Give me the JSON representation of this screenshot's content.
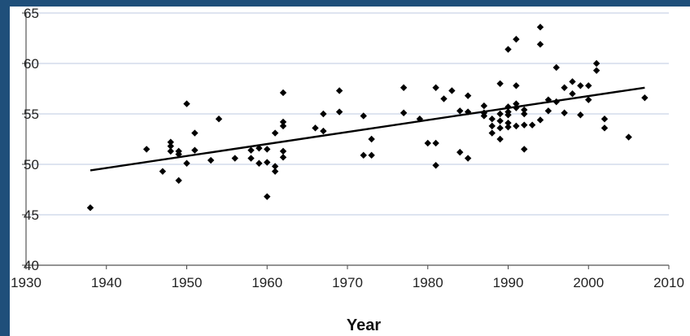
{
  "chart_data": {
    "type": "scatter",
    "title": "",
    "xlabel": "Year",
    "ylabel": "",
    "xlim": [
      1930,
      2010
    ],
    "ylim": [
      40,
      65
    ],
    "xticks": [
      "1930",
      "1940",
      "1950",
      "1960",
      "1970",
      "1980",
      "1990",
      "2000",
      "2010"
    ],
    "yticks": [
      "40",
      "45",
      "50",
      "55",
      "60",
      "65"
    ],
    "grid": "horizontal",
    "colors": {
      "plot_area": "#ffffff",
      "gridline": "#c9d3e8",
      "marker": "#000000",
      "trend": "#000000",
      "frame": "#1f4f7a"
    },
    "series": [
      {
        "points": [
          [
            1938,
            45.7
          ],
          [
            1945,
            51.5
          ],
          [
            1947,
            49.3
          ],
          [
            1948,
            52.2
          ],
          [
            1948,
            51.8
          ],
          [
            1948,
            51.3
          ],
          [
            1949,
            51.0
          ],
          [
            1949,
            51.3
          ],
          [
            1949,
            48.4
          ],
          [
            1950,
            56.0
          ],
          [
            1950,
            50.1
          ],
          [
            1951,
            53.1
          ],
          [
            1951,
            51.4
          ],
          [
            1953,
            50.4
          ],
          [
            1954,
            54.5
          ],
          [
            1956,
            50.6
          ],
          [
            1958,
            51.4
          ],
          [
            1958,
            50.6
          ],
          [
            1959,
            51.6
          ],
          [
            1959,
            50.1
          ],
          [
            1960,
            51.5
          ],
          [
            1960,
            50.2
          ],
          [
            1960,
            46.8
          ],
          [
            1961,
            49.8
          ],
          [
            1961,
            49.3
          ],
          [
            1961,
            53.1
          ],
          [
            1962,
            57.1
          ],
          [
            1962,
            54.2
          ],
          [
            1962,
            53.8
          ],
          [
            1962,
            51.3
          ],
          [
            1962,
            50.7
          ],
          [
            1966,
            53.6
          ],
          [
            1967,
            55.0
          ],
          [
            1967,
            53.3
          ],
          [
            1969,
            57.3
          ],
          [
            1969,
            55.2
          ],
          [
            1972,
            54.8
          ],
          [
            1972,
            50.9
          ],
          [
            1973,
            52.5
          ],
          [
            1973,
            50.9
          ],
          [
            1977,
            57.6
          ],
          [
            1977,
            55.1
          ],
          [
            1979,
            54.5
          ],
          [
            1980,
            52.1
          ],
          [
            1981,
            57.6
          ],
          [
            1981,
            52.1
          ],
          [
            1981,
            49.9
          ],
          [
            1982,
            56.5
          ],
          [
            1983,
            57.3
          ],
          [
            1984,
            55.3
          ],
          [
            1984,
            51.2
          ],
          [
            1985,
            56.8
          ],
          [
            1985,
            55.2
          ],
          [
            1985,
            50.6
          ],
          [
            1987,
            55.8
          ],
          [
            1987,
            55.1
          ],
          [
            1987,
            54.8
          ],
          [
            1988,
            54.5
          ],
          [
            1988,
            53.8
          ],
          [
            1988,
            53.1
          ],
          [
            1989,
            58.0
          ],
          [
            1989,
            55.0
          ],
          [
            1989,
            54.3
          ],
          [
            1989,
            53.6
          ],
          [
            1989,
            52.5
          ],
          [
            1990,
            61.4
          ],
          [
            1990,
            55.7
          ],
          [
            1990,
            55.2
          ],
          [
            1990,
            54.9
          ],
          [
            1990,
            54.1
          ],
          [
            1990,
            53.7
          ],
          [
            1991,
            62.4
          ],
          [
            1991,
            57.8
          ],
          [
            1991,
            56.0
          ],
          [
            1991,
            55.6
          ],
          [
            1991,
            53.8
          ],
          [
            1992,
            55.4
          ],
          [
            1992,
            55.0
          ],
          [
            1992,
            53.9
          ],
          [
            1992,
            51.5
          ],
          [
            1993,
            53.9
          ],
          [
            1994,
            63.6
          ],
          [
            1994,
            61.9
          ],
          [
            1994,
            54.4
          ],
          [
            1995,
            56.4
          ],
          [
            1995,
            55.3
          ],
          [
            1996,
            59.6
          ],
          [
            1996,
            56.2
          ],
          [
            1997,
            57.6
          ],
          [
            1997,
            55.1
          ],
          [
            1998,
            58.2
          ],
          [
            1998,
            57.0
          ],
          [
            1999,
            57.8
          ],
          [
            1999,
            54.9
          ],
          [
            2000,
            57.8
          ],
          [
            2000,
            56.4
          ],
          [
            2001,
            60.0
          ],
          [
            2001,
            59.3
          ],
          [
            2002,
            54.5
          ],
          [
            2002,
            53.6
          ],
          [
            2005,
            52.7
          ],
          [
            2007,
            56.6
          ]
        ]
      }
    ],
    "trendline": {
      "x": [
        1938,
        2007
      ],
      "y": [
        49.4,
        57.6
      ]
    }
  }
}
